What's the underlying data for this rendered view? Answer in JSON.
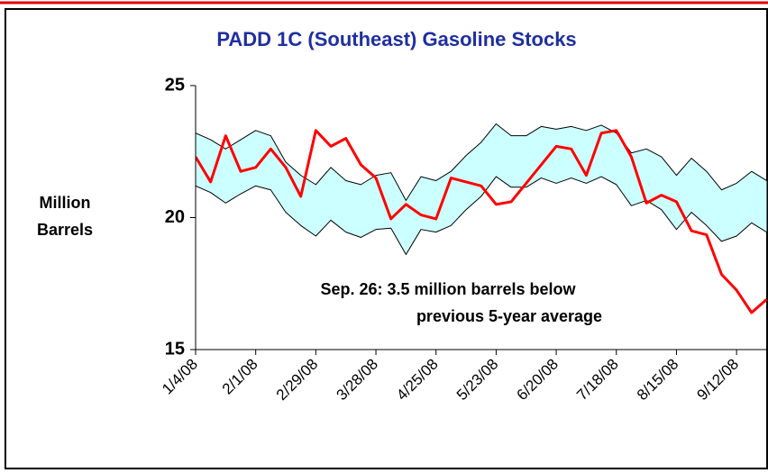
{
  "chart_data": {
    "type": "line",
    "title": "PADD 1C (Southeast) Gasoline Stocks",
    "ylabel": [
      "Million",
      "Barrels"
    ],
    "annotation": [
      "Sep. 26:  3.5 million barrels below",
      "previous 5-year average"
    ],
    "categories": [
      "1/4/08",
      null,
      null,
      null,
      "2/1/08",
      null,
      null,
      null,
      "2/29/08",
      null,
      null,
      null,
      "3/28/08",
      null,
      null,
      null,
      "4/25/08",
      null,
      null,
      null,
      "5/23/08",
      null,
      null,
      null,
      "6/20/08",
      null,
      null,
      null,
      "7/18/08",
      null,
      null,
      null,
      "8/15/08",
      null,
      null,
      null,
      "9/12/08",
      null,
      null
    ],
    "ylim": [
      15,
      25
    ],
    "yticks": [
      15,
      20,
      25
    ],
    "band_fill": "#ccffff",
    "series": [
      {
        "color": "#000000",
        "width": 1,
        "values": [
          23.2,
          22.95,
          22.6,
          22.95,
          23.3,
          23.1,
          22.1,
          21.6,
          21.25,
          21.9,
          21.4,
          21.25,
          21.6,
          21.7,
          20.65,
          21.55,
          21.4,
          21.75,
          22.35,
          22.85,
          23.55,
          23.1,
          23.1,
          23.45,
          23.35,
          23.45,
          23.3,
          23.5,
          23.2,
          22.45,
          22.6,
          22.3,
          21.6,
          22.25,
          21.75,
          21.05,
          21.3,
          21.75,
          21.4
        ]
      },
      {
        "color": "#000000",
        "width": 1,
        "values": [
          21.2,
          20.95,
          20.55,
          20.9,
          21.2,
          21.05,
          20.2,
          19.7,
          19.3,
          19.9,
          19.45,
          19.25,
          19.55,
          19.6,
          18.6,
          19.55,
          19.45,
          19.7,
          20.3,
          20.8,
          21.55,
          21.15,
          21.15,
          21.5,
          21.3,
          21.5,
          21.3,
          21.55,
          21.25,
          20.45,
          20.65,
          20.3,
          19.55,
          20.2,
          19.7,
          19.1,
          19.3,
          19.8,
          19.45
        ]
      },
      {
        "color": "#ff0000",
        "width": 3,
        "values": [
          22.3,
          21.35,
          23.1,
          21.75,
          21.9,
          22.6,
          21.9,
          20.8,
          23.3,
          22.7,
          23.0,
          22.0,
          21.5,
          19.95,
          20.5,
          20.1,
          19.95,
          21.5,
          21.35,
          21.2,
          20.5,
          20.6,
          21.3,
          22.0,
          22.7,
          22.6,
          21.6,
          23.2,
          23.3,
          22.3,
          20.55,
          20.85,
          20.6,
          19.5,
          19.35,
          17.85,
          17.25,
          16.4,
          16.9
        ]
      }
    ]
  }
}
